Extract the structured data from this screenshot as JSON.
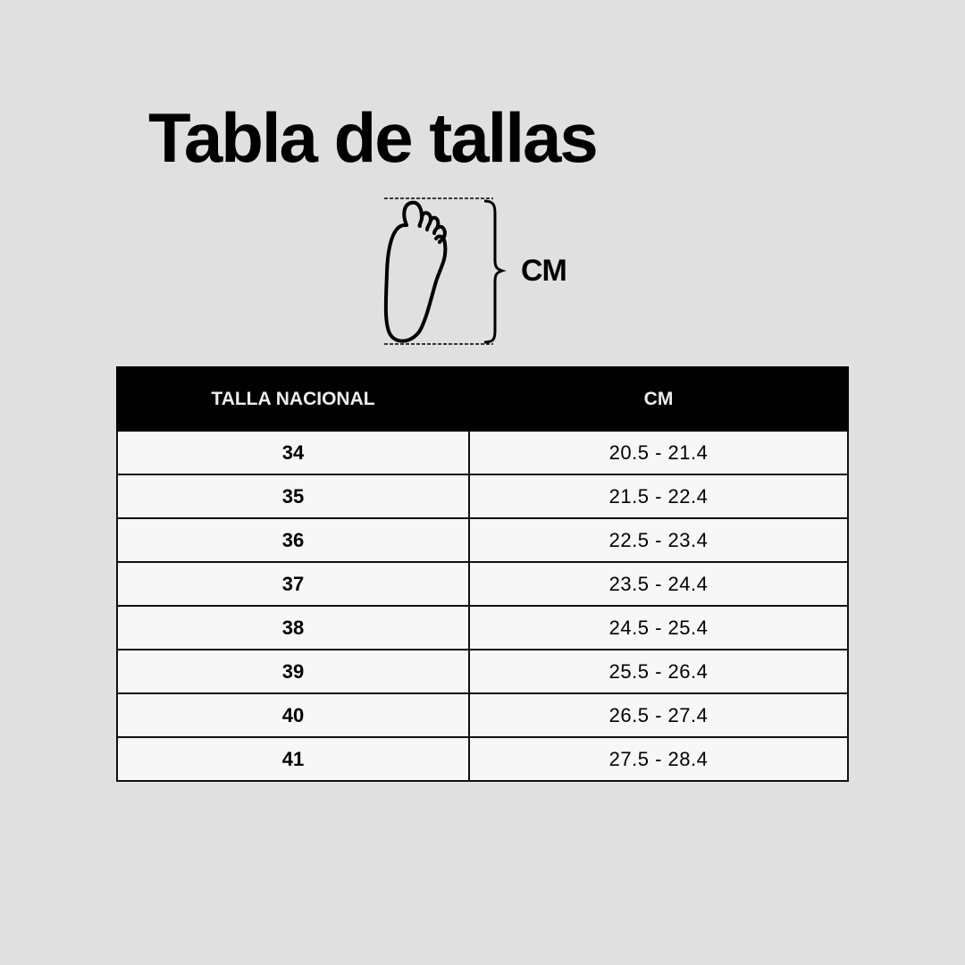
{
  "title": "Tabla de tallas",
  "diagram": {
    "icon": "foot-outline-icon",
    "measure_label": "CM"
  },
  "table": {
    "headers": [
      "TALLA NACIONAL",
      "CM"
    ],
    "rows": [
      {
        "size": "34",
        "cm": "20.5 - 21.4"
      },
      {
        "size": "35",
        "cm": "21.5 - 22.4"
      },
      {
        "size": "36",
        "cm": "22.5 - 23.4"
      },
      {
        "size": "37",
        "cm": "23.5 - 24.4"
      },
      {
        "size": "38",
        "cm": "24.5 - 25.4"
      },
      {
        "size": "39",
        "cm": "25.5 - 26.4"
      },
      {
        "size": "40",
        "cm": "26.5 - 27.4"
      },
      {
        "size": "41",
        "cm": "27.5 - 28.4"
      }
    ]
  },
  "colors": {
    "background": "#e0e0e0",
    "header": "#000000",
    "cell": "#f8f7f8"
  }
}
